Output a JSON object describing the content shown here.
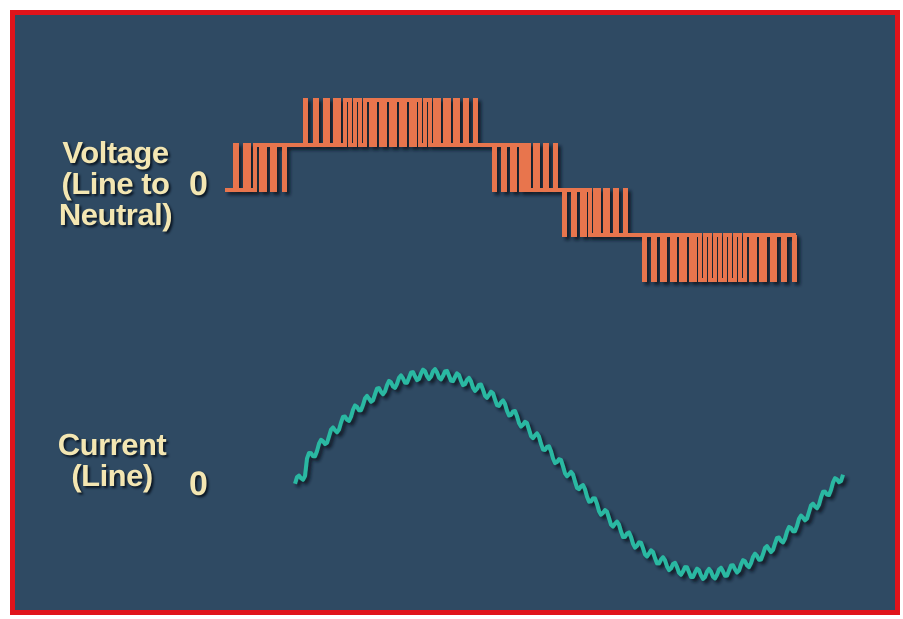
{
  "labels": {
    "voltage": [
      "Voltage",
      "(Line to",
      "Neutral)"
    ],
    "current": [
      "Current",
      "(Line)"
    ],
    "voltage_zero": "0",
    "current_zero": "0"
  },
  "colors": {
    "background": "#2f4a63",
    "frame": "#e0141b",
    "axis": "#f3e6b2",
    "voltage_wave": "#e8744d",
    "current_wave": "#2ab8a2"
  }
}
